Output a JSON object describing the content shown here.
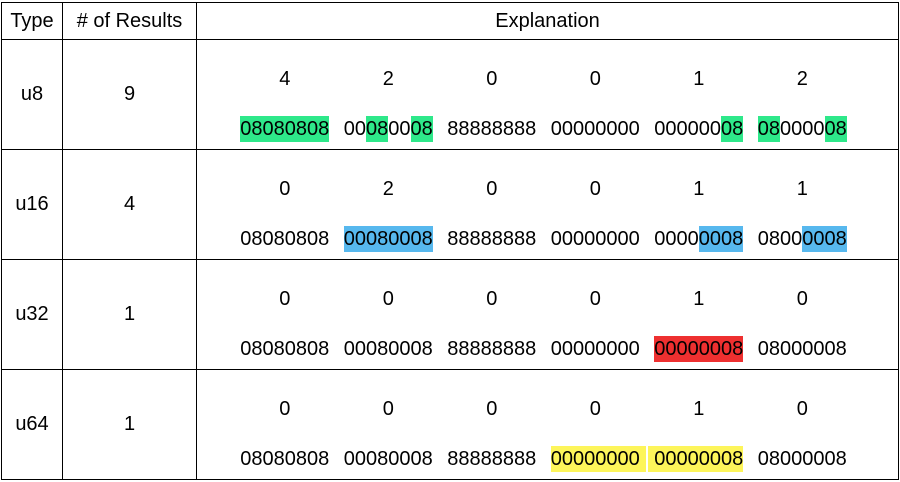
{
  "table": {
    "header": [
      "Type",
      "# of Results",
      "Explanation"
    ],
    "rows": [
      {
        "type": "u8",
        "results": "9",
        "highlight_color": "#2ee88a",
        "words": [
          {
            "count": "4",
            "segments": [
              {
                "text": "08080808",
                "highlight": true
              }
            ]
          },
          {
            "count": "2",
            "segments": [
              {
                "text": "00",
                "highlight": false
              },
              {
                "text": "08",
                "highlight": true
              },
              {
                "text": "00",
                "highlight": false
              },
              {
                "text": "08",
                "highlight": true
              }
            ]
          },
          {
            "count": "0",
            "segments": [
              {
                "text": "88888888",
                "highlight": false
              }
            ]
          },
          {
            "count": "0",
            "segments": [
              {
                "text": "00000000",
                "highlight": false
              }
            ]
          },
          {
            "count": "1",
            "segments": [
              {
                "text": "000000",
                "highlight": false
              },
              {
                "text": "08",
                "highlight": true
              }
            ]
          },
          {
            "count": "2",
            "segments": [
              {
                "text": "08",
                "highlight": true
              },
              {
                "text": "0000",
                "highlight": false
              },
              {
                "text": "08",
                "highlight": true
              }
            ]
          }
        ]
      },
      {
        "type": "u16",
        "results": "4",
        "highlight_color": "#57b8ee",
        "words": [
          {
            "count": "0",
            "segments": [
              {
                "text": "08080808",
                "highlight": false
              }
            ]
          },
          {
            "count": "2",
            "segments": [
              {
                "text": "00080008",
                "highlight": true
              }
            ]
          },
          {
            "count": "0",
            "segments": [
              {
                "text": "88888888",
                "highlight": false
              }
            ]
          },
          {
            "count": "0",
            "segments": [
              {
                "text": "00000000",
                "highlight": false
              }
            ]
          },
          {
            "count": "1",
            "segments": [
              {
                "text": "0000",
                "highlight": false
              },
              {
                "text": "0008",
                "highlight": true
              }
            ]
          },
          {
            "count": "1",
            "segments": [
              {
                "text": "0800",
                "highlight": false
              },
              {
                "text": "0008",
                "highlight": true
              }
            ]
          }
        ]
      },
      {
        "type": "u32",
        "results": "1",
        "highlight_color": "#ee3030",
        "words": [
          {
            "count": "0",
            "segments": [
              {
                "text": "08080808",
                "highlight": false
              }
            ]
          },
          {
            "count": "0",
            "segments": [
              {
                "text": "00080008",
                "highlight": false
              }
            ]
          },
          {
            "count": "0",
            "segments": [
              {
                "text": "88888888",
                "highlight": false
              }
            ]
          },
          {
            "count": "0",
            "segments": [
              {
                "text": "00000000",
                "highlight": false
              }
            ]
          },
          {
            "count": "1",
            "segments": [
              {
                "text": "00000008",
                "highlight": true
              }
            ]
          },
          {
            "count": "0",
            "segments": [
              {
                "text": "08000008",
                "highlight": false
              }
            ]
          }
        ]
      },
      {
        "type": "u64",
        "results": "1",
        "highlight_color": "#fdf55a",
        "words": [
          {
            "count": "0",
            "segments": [
              {
                "text": "08080808",
                "highlight": false
              }
            ]
          },
          {
            "count": "0",
            "segments": [
              {
                "text": "00080008",
                "highlight": false
              }
            ]
          },
          {
            "count": "0",
            "segments": [
              {
                "text": "88888888",
                "highlight": false
              }
            ]
          },
          {
            "count": "0",
            "segments": [
              {
                "text": "00000000",
                "highlight": true
              }
            ],
            "joined_with_next": true
          },
          {
            "count": "1",
            "segments": [
              {
                "text": "00000008",
                "highlight": true
              }
            ]
          },
          {
            "count": "0",
            "segments": [
              {
                "text": "08000008",
                "highlight": false
              }
            ]
          }
        ]
      }
    ]
  }
}
